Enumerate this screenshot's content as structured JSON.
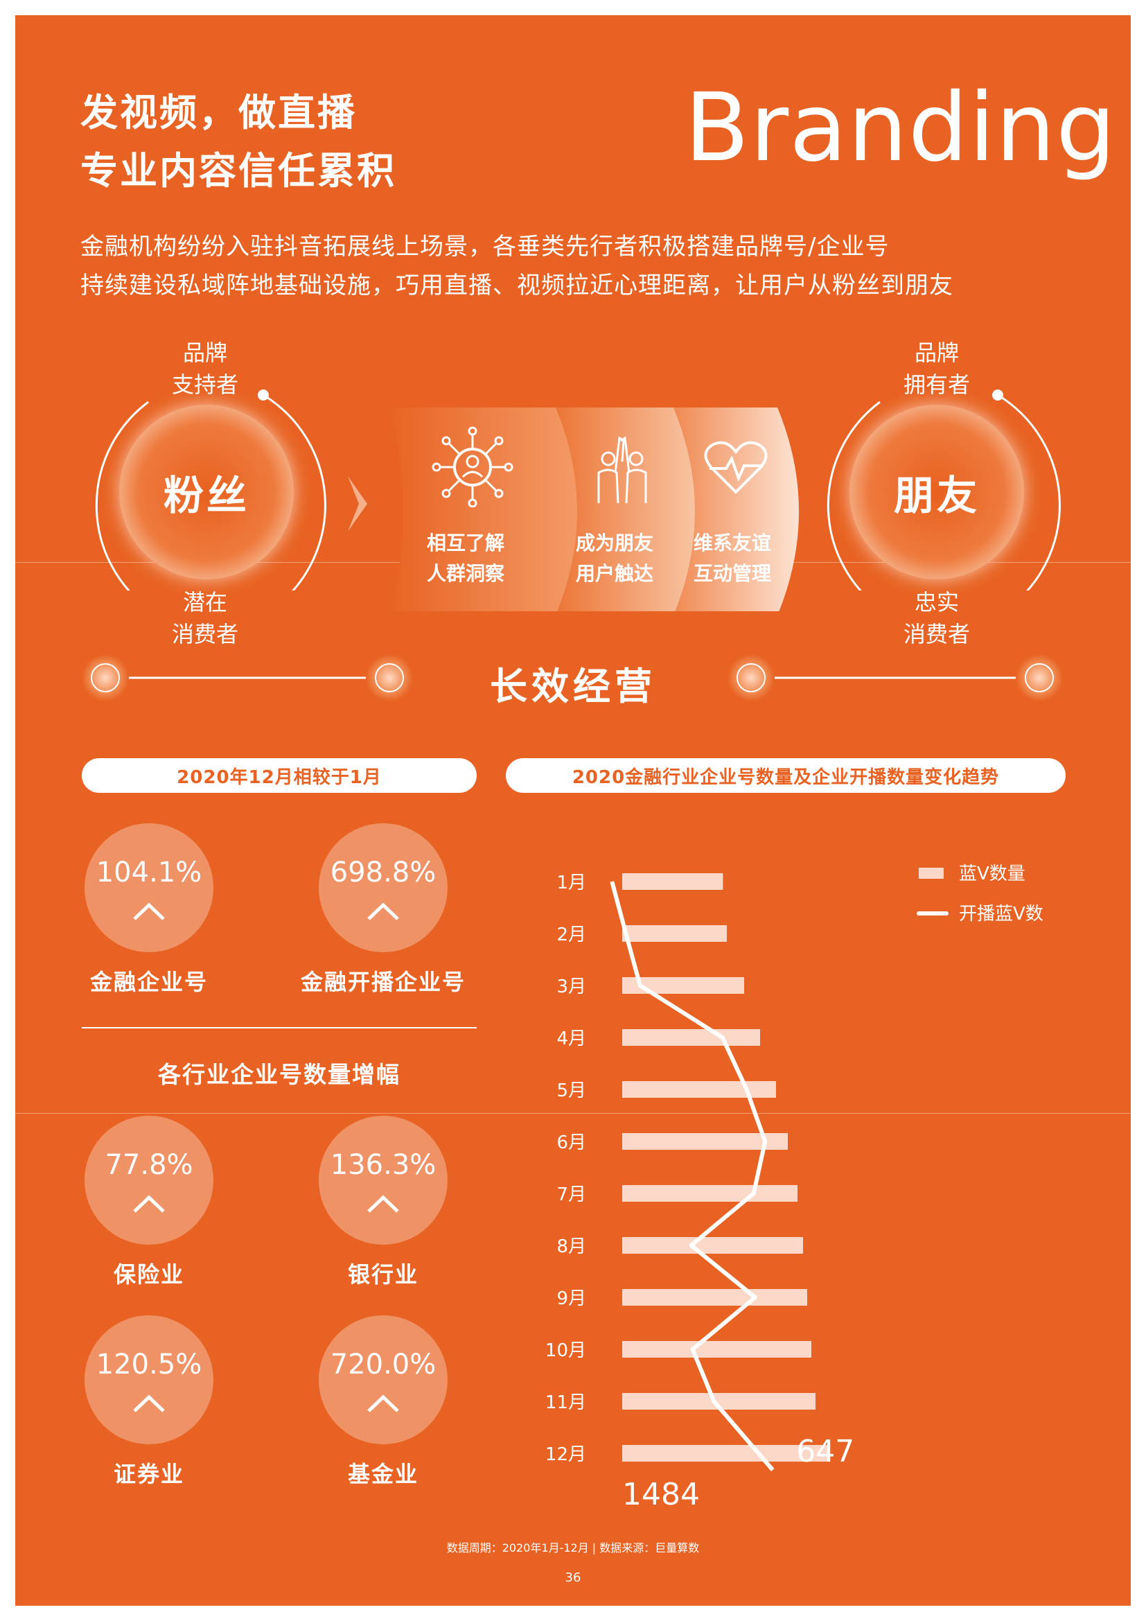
{
  "header": {
    "title_line1": "发视频，做直播",
    "title_line2": "专业内容信任累积",
    "brand_word": "Branding",
    "intro_line1": "金融机构纷纷入驻抖音拓展线上场景，各垂类先行者积极搭建品牌号/企业号",
    "intro_line2": "持续建设私域阵地基础设施，巧用直播、视频拉近心理距离，让用户从粉丝到朋友"
  },
  "journey": {
    "left_orb": "粉丝",
    "left_top_label": [
      "品牌",
      "支持者"
    ],
    "left_bottom_label": [
      "潜在",
      "消费者"
    ],
    "right_orb": "朋友",
    "right_top_label": [
      "品牌",
      "拥有者"
    ],
    "right_bottom_label": [
      "忠实",
      "消费者"
    ],
    "steps": [
      {
        "icon": "network-people-icon",
        "line1": "相互了解",
        "line2": "人群洞察"
      },
      {
        "icon": "high-five-people-icon",
        "line1": "成为朋友",
        "line2": "用户触达"
      },
      {
        "icon": "heartbeat-icon",
        "line1": "维系友谊",
        "line2": "互动管理"
      }
    ],
    "bottom_title": "长效经营"
  },
  "left_panel": {
    "pill": "2020年12月相较于1月",
    "top_stats": [
      {
        "value": "104.1%",
        "label": "金融企业号"
      },
      {
        "value": "698.8%",
        "label": "金融开播企业号"
      }
    ],
    "industry_heading": "各行业企业号数量增幅",
    "industry_stats": [
      {
        "value": "77.8%",
        "label": "保险业"
      },
      {
        "value": "136.3%",
        "label": "银行业"
      },
      {
        "value": "120.5%",
        "label": "证券业"
      },
      {
        "value": "720.0%",
        "label": "基金业"
      }
    ]
  },
  "right_panel": {
    "pill": "2020金融行业企业号数量及企业开播数量变化趋势"
  },
  "chart_data": {
    "type": "bar",
    "orientation": "horizontal",
    "title": "2020金融行业企业号数量及企业开播数量变化趋势",
    "categories": [
      "1月",
      "2月",
      "3月",
      "4月",
      "5月",
      "6月",
      "7月",
      "8月",
      "9月",
      "10月",
      "11月",
      "12月"
    ],
    "series": [
      {
        "name": "蓝V数量",
        "type": "bar",
        "values": [
          727,
          755,
          880,
          995,
          1110,
          1195,
          1265,
          1305,
          1335,
          1365,
          1395,
          1484
        ],
        "end_label": "1484"
      },
      {
        "name": "开播蓝V数",
        "type": "line",
        "values": [
          81,
          130,
          180,
          470,
          555,
          620,
          580,
          360,
          585,
          365,
          440,
          647
        ],
        "end_label": "647"
      }
    ],
    "legend": "top-right",
    "grid": false,
    "colors": {
      "bar": "#fbd8c7",
      "line": "#ffffff"
    }
  },
  "footer": {
    "source": "数据周期：2020年1月-12月 | 数据来源：巨量算数",
    "page_number": "36"
  },
  "colors": {
    "background": "#e86323",
    "accent_light": "#fbd8c7",
    "white": "#ffffff"
  }
}
